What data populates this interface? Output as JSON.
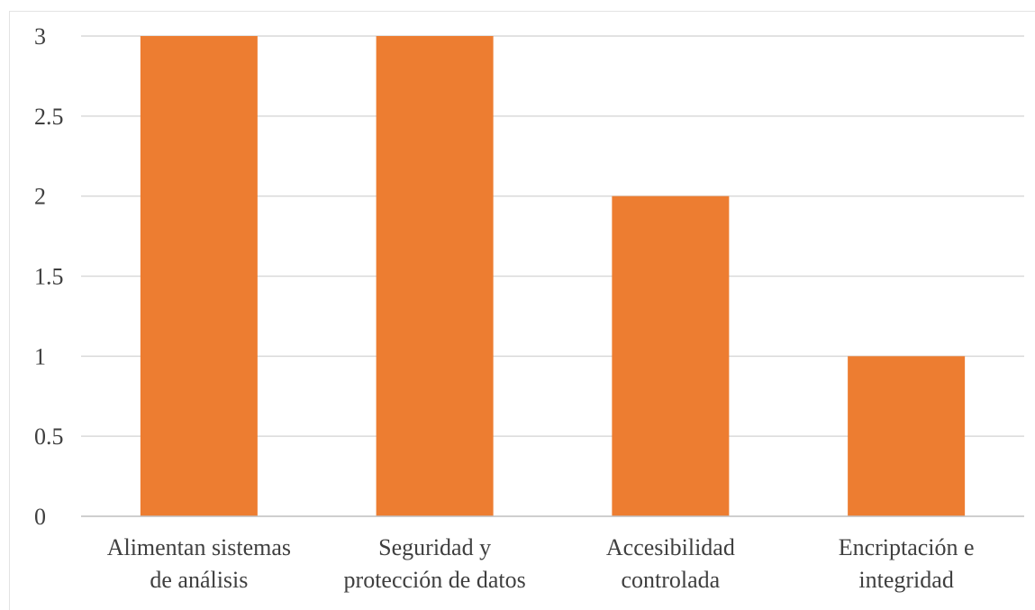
{
  "chart_data": {
    "type": "bar",
    "title": "",
    "xlabel": "",
    "ylabel": "",
    "categories": [
      "Alimentan sistemas de análisis",
      "Seguridad y protección de datos",
      "Accesibilidad controlada",
      "Encriptación e integridad"
    ],
    "category_lines": [
      [
        "Alimentan sistemas",
        "de análisis"
      ],
      [
        "Seguridad y",
        "protección de datos"
      ],
      [
        "Accesibilidad",
        "controlada"
      ],
      [
        "Encriptación e",
        "integridad"
      ]
    ],
    "values": [
      3,
      3,
      2,
      1
    ],
    "ylim": [
      0,
      3
    ],
    "yticks": [
      0,
      0.5,
      1,
      1.5,
      2,
      2.5,
      3
    ],
    "ytick_labels": [
      "0",
      "0.5",
      "1",
      "1.5",
      "2",
      "2.5",
      "3"
    ],
    "grid": true,
    "legend": "none",
    "bar_color": "#ED7D31"
  }
}
